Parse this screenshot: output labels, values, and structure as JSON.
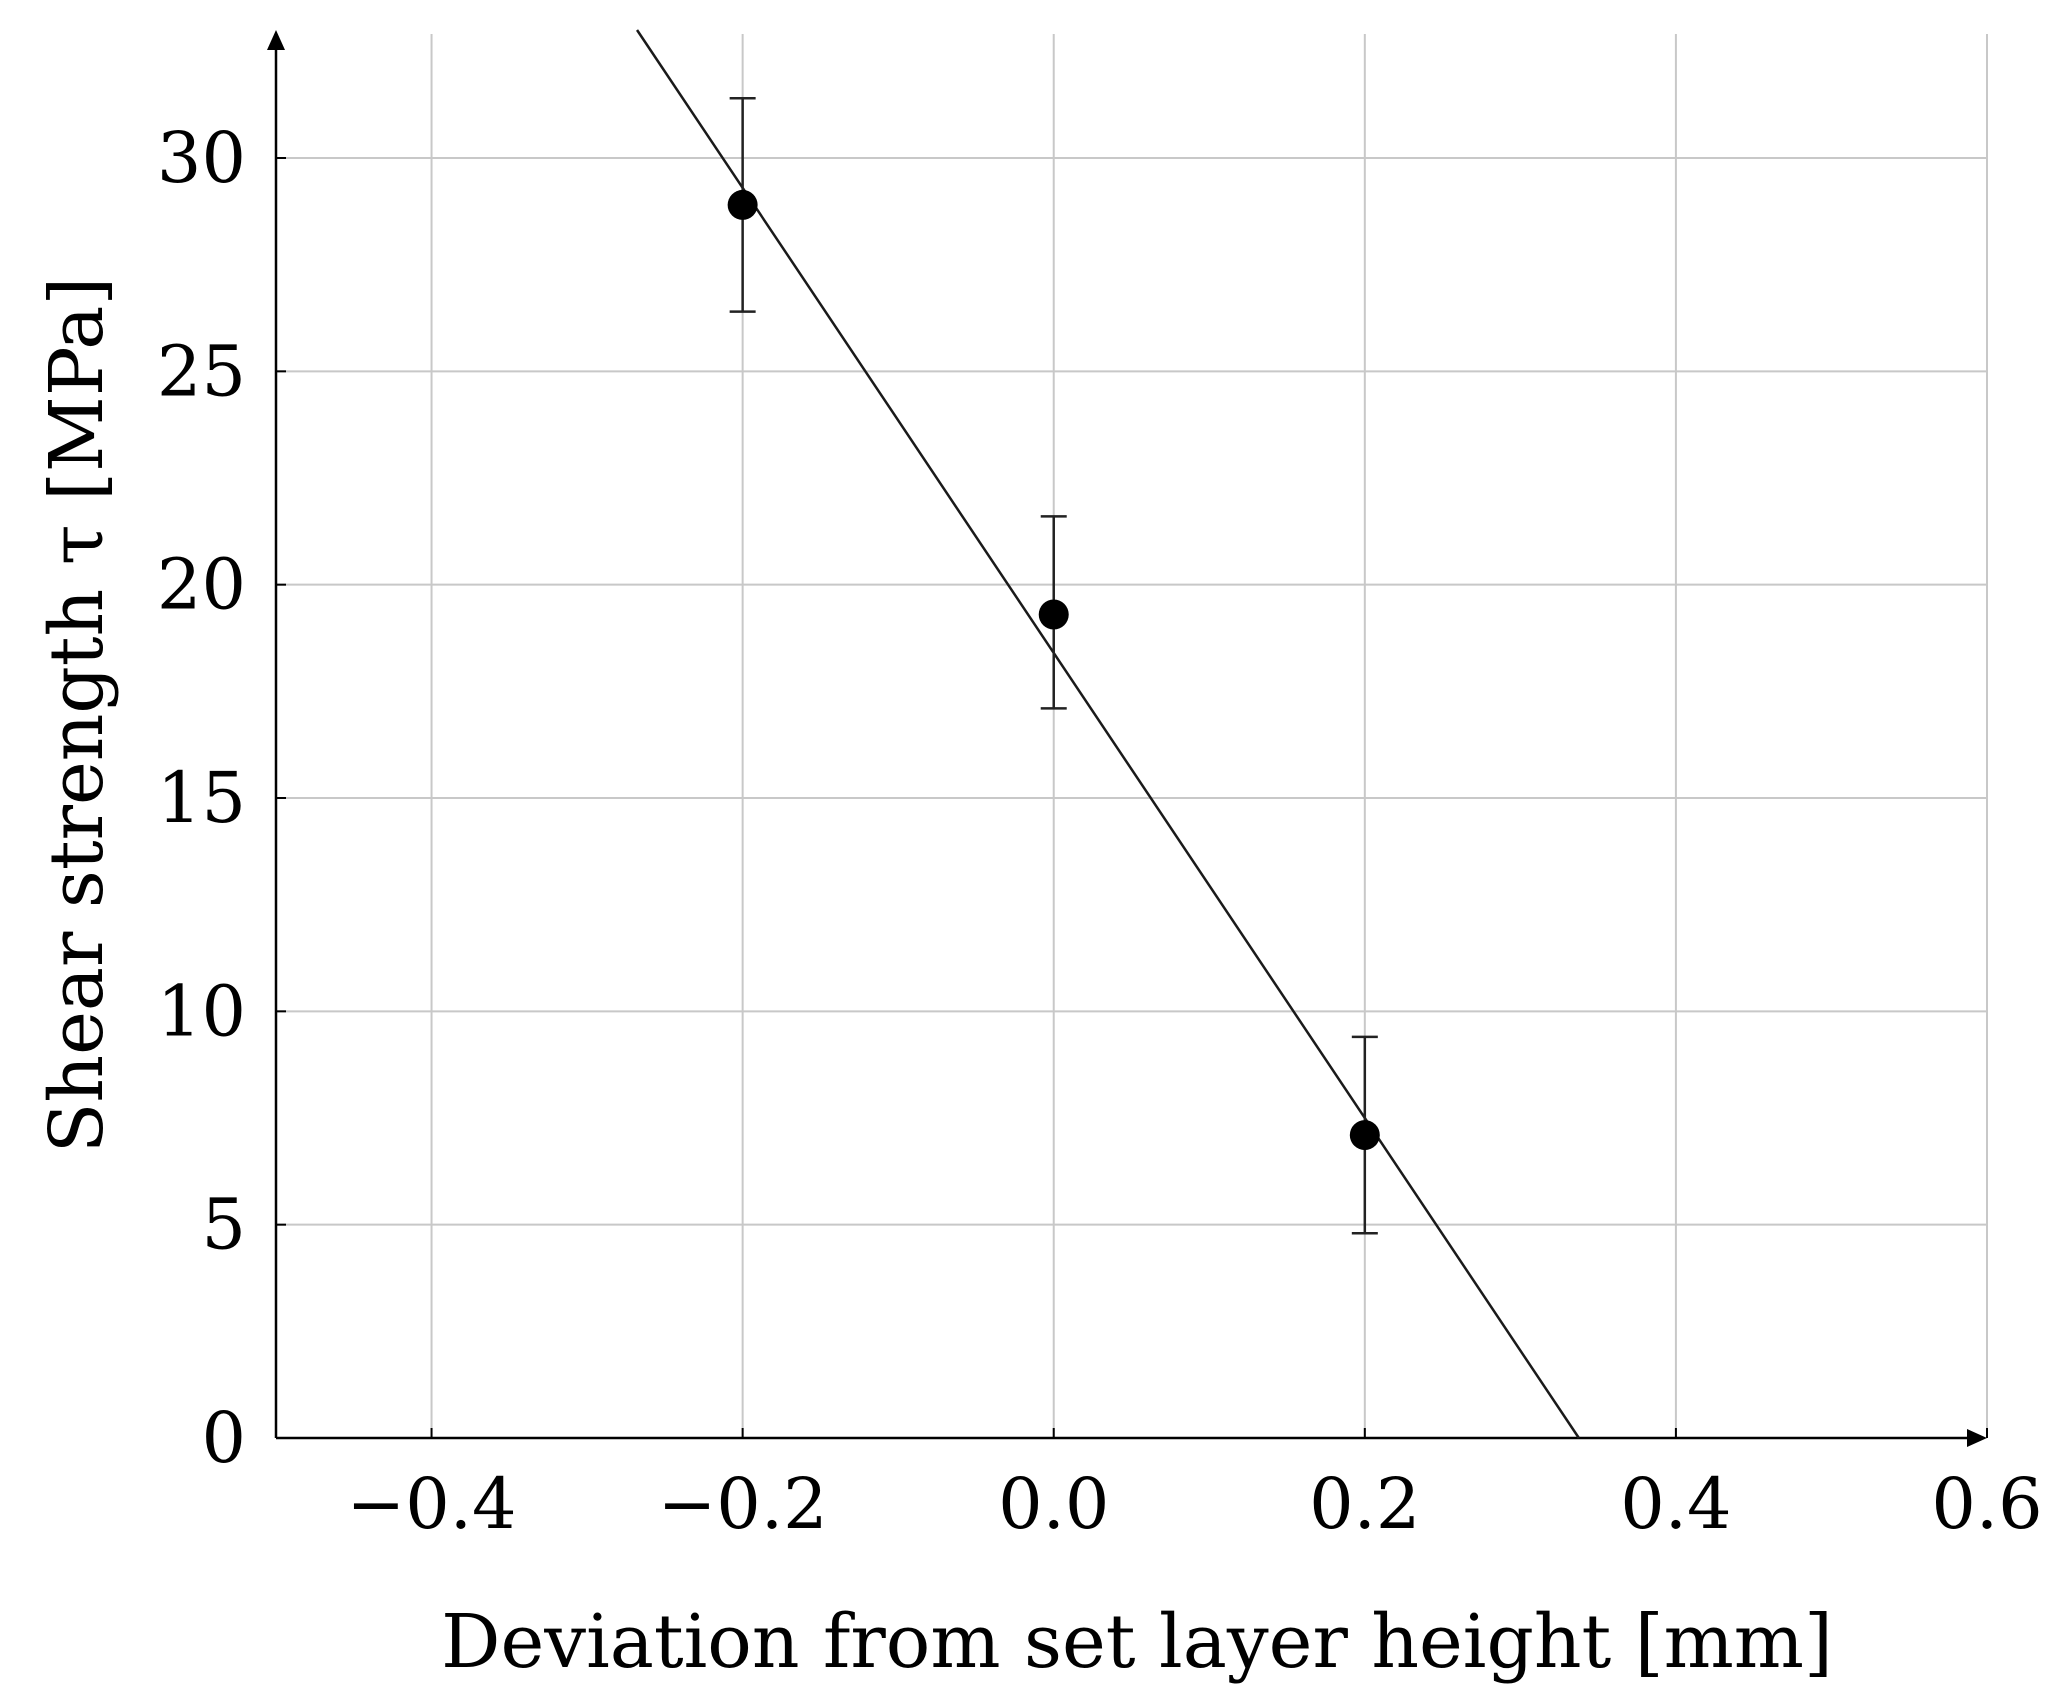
{
  "chart_data": {
    "type": "scatter",
    "title": "",
    "xlabel": "Deviation from set layer height [mm]",
    "ylabel": "Shear strength τ [MPa]",
    "xlim": [
      -0.5,
      0.6
    ],
    "ylim": [
      0,
      33
    ],
    "xticks": [
      -0.4,
      -0.2,
      0.0,
      0.2,
      0.4,
      0.6
    ],
    "xtick_labels": [
      "−0.4",
      "−0.2",
      "0.0",
      "0.2",
      "0.4",
      "0.6"
    ],
    "yticks": [
      0,
      5,
      10,
      15,
      20,
      25,
      30
    ],
    "ytick_labels": [
      "0",
      "5",
      "10",
      "15",
      "20",
      "25",
      "30"
    ],
    "grid": true,
    "series": [
      {
        "points": [
          {
            "x": -0.2,
            "y": 28.9,
            "err_low": 26.4,
            "err_high": 31.4
          },
          {
            "x": 0.0,
            "y": 19.3,
            "err_low": 17.1,
            "err_high": 21.6
          },
          {
            "x": 0.2,
            "y": 7.1,
            "err_low": 4.8,
            "err_high": 9.4
          }
        ]
      }
    ],
    "fit_line": {
      "type": "linear",
      "slope": -54.5,
      "intercept": 18.4
    }
  }
}
